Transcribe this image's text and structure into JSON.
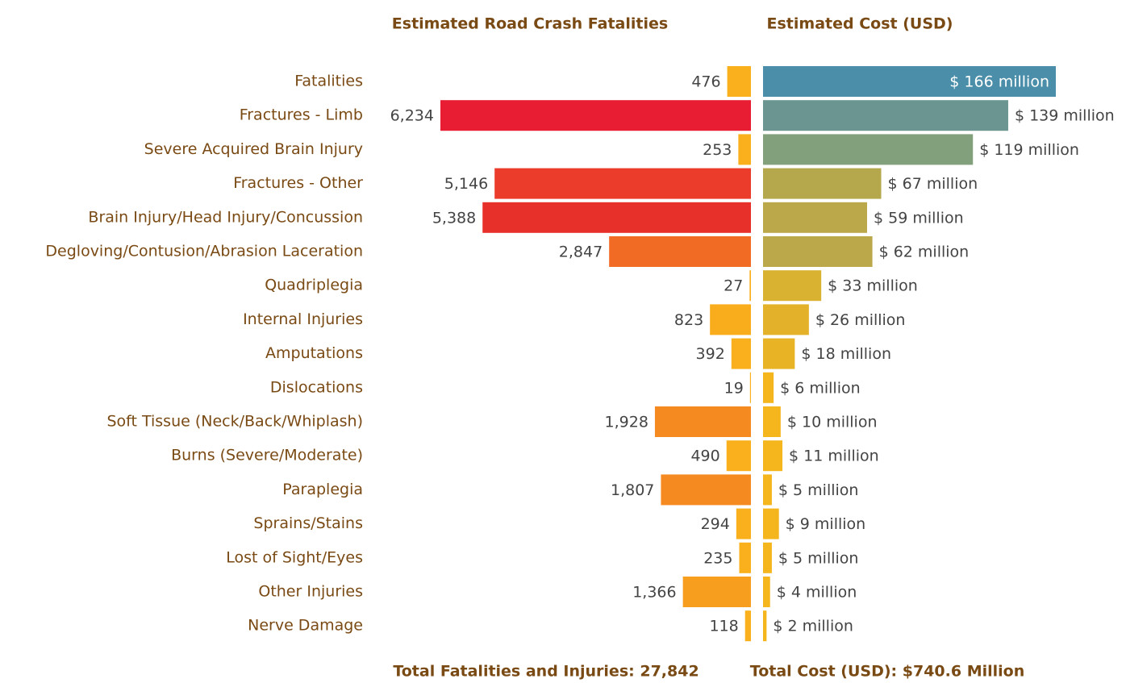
{
  "chart_data": {
    "type": "butterfly",
    "categories": [
      "Fatalities",
      "Fractures - Limb",
      "Severe Acquired Brain Injury",
      "Fractures - Other",
      "Brain Injury/Head Injury/Concussion",
      "Degloving/Contusion/Abrasion Laceration",
      "Quadriplegia",
      "Internal Injuries",
      "Amputations",
      "Dislocations",
      "Soft Tissue (Neck/Back/Whiplash)",
      "Burns (Severe/Moderate)",
      "Paraplegia",
      "Sprains/Stains",
      "Lost of Sight/Eyes",
      "Other Injuries",
      "Nerve Damage"
    ],
    "series": [
      {
        "name": "Estimated Road Crash Fatalities",
        "values": [
          476,
          6234,
          253,
          5146,
          5388,
          2847,
          27,
          823,
          392,
          19,
          1928,
          490,
          1807,
          294,
          235,
          1366,
          118
        ],
        "value_labels": [
          "476",
          "6,234",
          "253",
          "5,146",
          "5,388",
          "2,847",
          "27",
          "823",
          "392",
          "19",
          "1,928",
          "490",
          "1,807",
          "294",
          "235",
          "1,366",
          "118"
        ],
        "colors": [
          "#f9b01c",
          "#e81c32",
          "#f9b01c",
          "#eb3b2a",
          "#e8302b",
          "#f26b24",
          "#f9b01c",
          "#f9ad1c",
          "#f9b01c",
          "#f9b01c",
          "#f58b20",
          "#f9b01c",
          "#f58b20",
          "#f9b01c",
          "#f9b01c",
          "#f79e1e",
          "#f9b01c"
        ],
        "total": "Total Fatalities and Injuries: 27,842"
      },
      {
        "name": "Estimated Cost (USD)",
        "values": [
          166,
          139,
          119,
          67,
          59,
          62,
          33,
          26,
          18,
          6,
          10,
          11,
          5,
          9,
          5,
          4,
          2
        ],
        "value_labels": [
          "$ 166 million",
          "$ 139 million",
          "$ 119 million",
          "$ 67 million",
          "$ 59 million",
          "$ 62 million",
          "$ 33 million",
          "$ 26 million",
          "$ 18 million",
          "$ 6 million",
          "$ 10 million",
          "$ 11 million",
          "$ 5 million",
          "$ 9 million",
          "$ 5 million",
          "$ 4 million",
          "$ 2 million"
        ],
        "colors": [
          "#4a8eaa",
          "#6b9590",
          "#83a07c",
          "#b5a84c",
          "#bba84a",
          "#bba84a",
          "#d9b232",
          "#e3b22a",
          "#e8b325",
          "#f5b51d",
          "#f5b51d",
          "#f5b51d",
          "#f5b51d",
          "#f5b51d",
          "#f5b51d",
          "#f5b51d",
          "#f5b51d"
        ],
        "total": "Total Cost (USD): $740.6 Million"
      }
    ]
  }
}
